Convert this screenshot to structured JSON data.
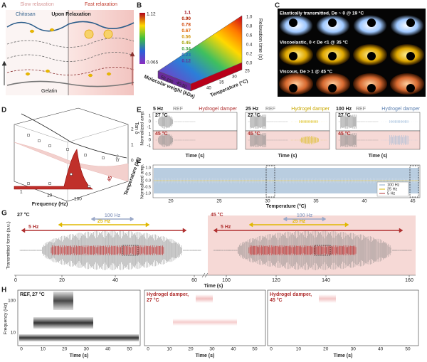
{
  "A": {
    "label": "A",
    "slow": "Slow relaxation",
    "fast": "Fast relaxation",
    "chitosan": "Chitosan",
    "upon": "Upon Relaxation",
    "gelatin": "Gelatin"
  },
  "B": {
    "label": "B",
    "colorbar": [
      "1.12",
      "0.065"
    ],
    "contours": [
      "1.1",
      "0.90",
      "0.78",
      "0.67",
      "0.56",
      "0.45",
      "0.34",
      "0.23",
      "0.12"
    ],
    "mw_label": "Molecular weight (kDa)",
    "mw_ticks": [
      "50-100",
      "40-50"
    ],
    "temp_label": "Temperature (°C)",
    "temp_ticks": [
      "25",
      "30",
      "35",
      "40"
    ],
    "z_label": "Relaxation time (s)",
    "z_ticks": [
      "1.0",
      "0.8",
      "0.6",
      "0.4",
      "0.2",
      "0.0"
    ]
  },
  "C": {
    "label": "C",
    "rows": [
      "Elastically transmitted, De ~ 0 @ 19 °C",
      "Viscoelastic, 0 < De <1 @ 35 °C",
      "Viscous, De > 1 @ 45 °C"
    ]
  },
  "D": {
    "label": "D",
    "y_label": "Tan δ",
    "y_ticks": [
      "2",
      "1",
      "0"
    ],
    "x_label": "Frequency (Hz)",
    "x_ticks": [
      "1",
      "10",
      "100"
    ],
    "z_label": "Temperature (°C)",
    "z_ticks": [
      "27",
      "45"
    ]
  },
  "E": {
    "label": "E",
    "y_label": "Normalized amp.",
    "y_ticks": [
      "1",
      "0",
      "-1",
      "1",
      "0",
      "-1"
    ],
    "panels": [
      {
        "freq": "5 Hz",
        "ref": "REF",
        "damper": "Hydrogel damper",
        "t1": "27 °C",
        "t2": "45 °C",
        "x_label": "Time (s)"
      },
      {
        "freq": "25 Hz",
        "ref": "REF",
        "damper": "Hydrogel damper",
        "t1": "27 °C",
        "t2": "45 °C",
        "x_label": "Time (s)"
      },
      {
        "freq": "100 Hz",
        "ref": "REF",
        "damper": "Hydrogel damper",
        "t1": "27 °C",
        "t2": "45 °C",
        "x_label": "Time (s)"
      }
    ]
  },
  "F": {
    "label": "F",
    "y_label": "Normalized amp.",
    "y_ticks": [
      "1.0",
      "0.5",
      "0.0",
      "-0.5",
      "-1.0"
    ],
    "x_label": "Temperature (°C)",
    "x_ticks": [
      "20",
      "25",
      "30",
      "35",
      "40",
      "45"
    ],
    "legend": [
      "100 Hz",
      "25 Hz",
      "5 Hz"
    ]
  },
  "G": {
    "label": "G",
    "y_label": "Transmitted force (a.u.)",
    "t1": "27 °C",
    "t2": "45 °C",
    "arrows": [
      "5 Hz",
      "25 Hz",
      "100 Hz",
      "5 Hz",
      "25 Hz",
      "100 Hz"
    ],
    "x_ticks": [
      "0",
      "20",
      "40",
      "60",
      "100",
      "120",
      "140",
      "160"
    ],
    "x_label": "Time (s)"
  },
  "H": {
    "label": "H",
    "y_label": "Frequency (Hz)",
    "y_ticks": [
      "100",
      "10"
    ],
    "panels": [
      {
        "title": [
          "REF, 27 °C"
        ],
        "x_ticks": [
          "0",
          "10",
          "20",
          "30",
          "40",
          "50"
        ],
        "x_label": "Time (s)"
      },
      {
        "title": [
          "Hydrogel damper,",
          "27 °C"
        ],
        "x_ticks": [
          "0",
          "10",
          "20",
          "30",
          "40",
          "50"
        ],
        "x_label": "Time (s)"
      },
      {
        "title": [
          "Hydrogel damper,",
          "45 °C"
        ],
        "x_ticks": [
          "0",
          "10",
          "20",
          "30",
          "40",
          "50"
        ],
        "x_label": "Time (s)"
      }
    ]
  }
}
